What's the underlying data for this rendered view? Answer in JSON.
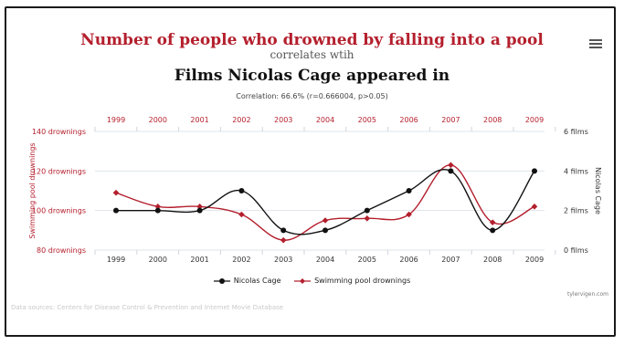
{
  "title": "Number of people who drowned by falling into a pool",
  "subtitle": "correlates wtih",
  "second_title": "Films Nicolas Cage appeared in",
  "correlation": "Correlation: 66.6% (r=0.666004, p>0.05)",
  "icons": {
    "menu": "hamburger-menu-icon"
  },
  "colors": {
    "drownings": "#b41f2d",
    "cage": "#111111",
    "grid": "#dfe4ea"
  },
  "chart_data": {
    "type": "line",
    "categories": [
      "1999",
      "2000",
      "2001",
      "2002",
      "2003",
      "2004",
      "2005",
      "2006",
      "2007",
      "2008",
      "2009"
    ],
    "series": [
      {
        "name": "Nicolas Cage",
        "axis": "right",
        "unit": "films",
        "values": [
          2,
          2,
          2,
          3,
          1,
          1,
          2,
          3,
          4,
          1,
          4
        ]
      },
      {
        "name": "Swimming pool drownings",
        "axis": "left",
        "unit": "drownings",
        "values": [
          109,
          102,
          102,
          98,
          85,
          95,
          96,
          98,
          123,
          94,
          102
        ]
      }
    ],
    "left_axis": {
      "label": "Swimming pool drownings",
      "ticks": [
        "80 drownings",
        "100 drownings",
        "120 drownings",
        "140 drownings"
      ],
      "range": [
        80,
        140
      ]
    },
    "right_axis": {
      "label": "Nicolas Cage",
      "ticks": [
        "0 films",
        "2 films",
        "4 films",
        "6 films"
      ],
      "range": [
        0,
        6
      ]
    },
    "grid": true,
    "legend_position": "bottom"
  },
  "credit": "tylervigen.com",
  "sources": "Data sources: Centers for Disease Control & Prevention and Internet Movie Database"
}
